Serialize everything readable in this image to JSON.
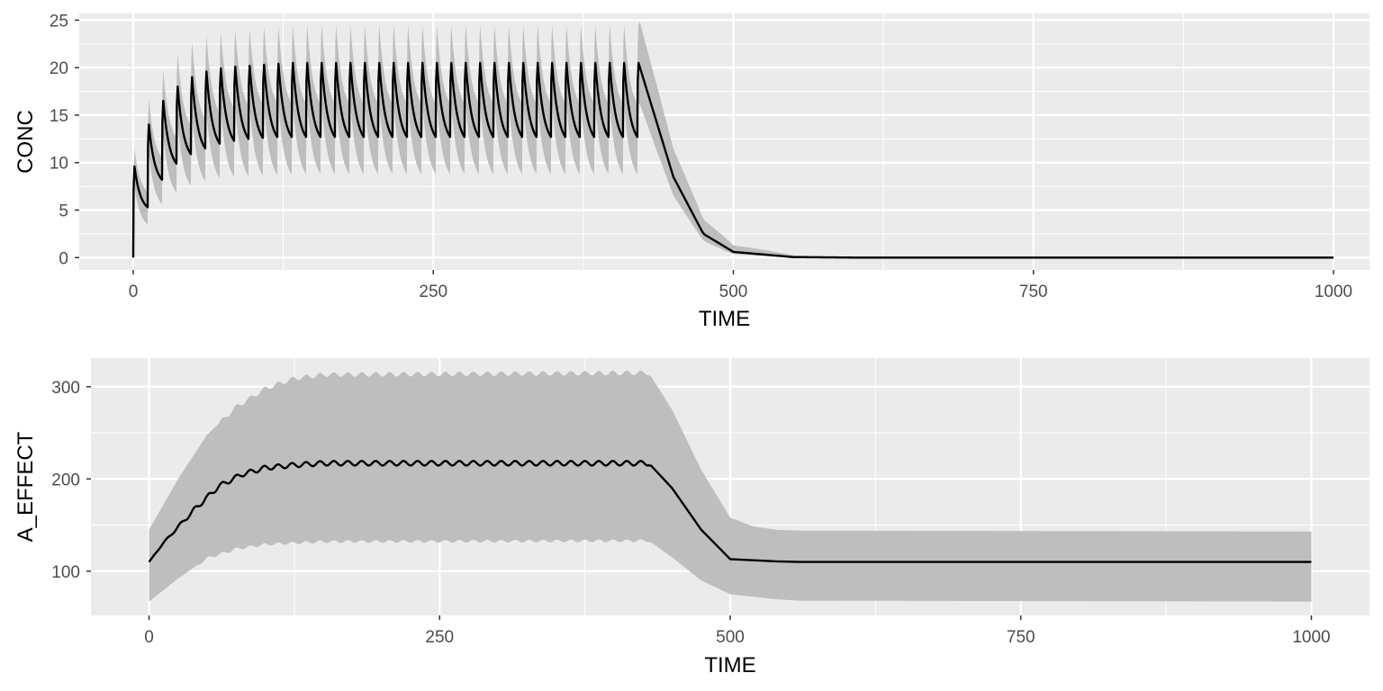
{
  "chart_data": [
    {
      "type": "line",
      "xlabel": "TIME",
      "ylabel": "CONC",
      "xlim": [
        -45,
        1030
      ],
      "ylim": [
        -1.3,
        25.7
      ],
      "x_ticks": [
        0,
        250,
        500,
        750,
        1000
      ],
      "x_tick_labels": [
        "0",
        "250",
        "500",
        "750",
        "1000"
      ],
      "y_ticks": [
        0,
        5,
        10,
        15,
        20,
        25
      ],
      "y_tick_labels": [
        "0",
        "5",
        "10",
        "15",
        "20",
        "25"
      ],
      "grid": true,
      "series": [
        {
          "kind": "line",
          "dosing_interval": 12,
          "last_dose_time": 420,
          "x_end": 1000,
          "peak_values": [
            9.6,
            14.0,
            16.5,
            18.0,
            19.0,
            19.6,
            19.9,
            20.1,
            20.2,
            20.3,
            20.4
          ],
          "steady_state_peak": 20.5,
          "trough_values": [
            5.3,
            8.2,
            9.9,
            10.9,
            11.5,
            12.0,
            12.3,
            12.5,
            12.6
          ],
          "steady_state_trough": 12.7,
          "washout": {
            "start_time": 432,
            "start_value": 20.5,
            "points": [
              [
                450,
                8.5
              ],
              [
                475,
                2.5
              ],
              [
                500,
                0.6
              ],
              [
                550,
                0.05
              ],
              [
                600,
                0.0
              ],
              [
                1000,
                0.0
              ]
            ]
          }
        },
        {
          "kind": "ribbon",
          "color": "#bebebe",
          "upper_peak_steady": 24.5,
          "lower_trough_steady": 8.8,
          "upper_peak_first": 11.5,
          "lower_trough_first": 3.5
        }
      ],
      "colors": {
        "panel": "#ebebeb",
        "grid": "#ffffff",
        "line": "#000000",
        "ribbon": "#bebebe"
      }
    },
    {
      "type": "line",
      "xlabel": "TIME",
      "ylabel": "A_EFFECT",
      "xlim": [
        -50,
        1050
      ],
      "ylim": [
        52,
        331
      ],
      "x_ticks": [
        0,
        250,
        500,
        750,
        1000
      ],
      "x_tick_labels": [
        "0",
        "250",
        "500",
        "750",
        "1000"
      ],
      "y_ticks": [
        100,
        200,
        300
      ],
      "y_tick_labels": [
        "100",
        "200",
        "300"
      ],
      "grid": true,
      "series": [
        {
          "kind": "line",
          "baseline": 110,
          "steady_state": 217,
          "oscillation_amplitude": 2.5,
          "oscillation_period": 12,
          "rise_points": [
            [
              0,
              110
            ],
            [
              12,
              130
            ],
            [
              25,
              148
            ],
            [
              40,
              168
            ],
            [
              60,
              192
            ],
            [
              80,
              205
            ],
            [
              100,
              212
            ],
            [
              125,
              215
            ],
            [
              150,
              217
            ],
            [
              430,
              217
            ]
          ],
          "fall_points": [
            [
              430,
              217
            ],
            [
              450,
              190
            ],
            [
              475,
              145
            ],
            [
              500,
              113
            ],
            [
              550,
              110
            ],
            [
              1000,
              110
            ]
          ]
        },
        {
          "kind": "ribbon",
          "color": "#bebebe",
          "upper_points": [
            [
              0,
              145
            ],
            [
              25,
              200
            ],
            [
              50,
              248
            ],
            [
              75,
              278
            ],
            [
              100,
              298
            ],
            [
              125,
              309
            ],
            [
              150,
              313
            ],
            [
              430,
              315
            ],
            [
              450,
              275
            ],
            [
              475,
              210
            ],
            [
              500,
              158
            ],
            [
              525,
              146
            ],
            [
              550,
              144
            ],
            [
              1000,
              143
            ]
          ],
          "lower_points": [
            [
              0,
              67
            ],
            [
              25,
              92
            ],
            [
              50,
              114
            ],
            [
              75,
              124
            ],
            [
              100,
              129
            ],
            [
              150,
              132
            ],
            [
              430,
              133
            ],
            [
              450,
              115
            ],
            [
              475,
              90
            ],
            [
              500,
              75
            ],
            [
              550,
              68
            ],
            [
              1000,
              67
            ]
          ]
        }
      ],
      "colors": {
        "panel": "#ebebeb",
        "grid": "#ffffff",
        "line": "#000000",
        "ribbon": "#bebebe"
      }
    }
  ]
}
